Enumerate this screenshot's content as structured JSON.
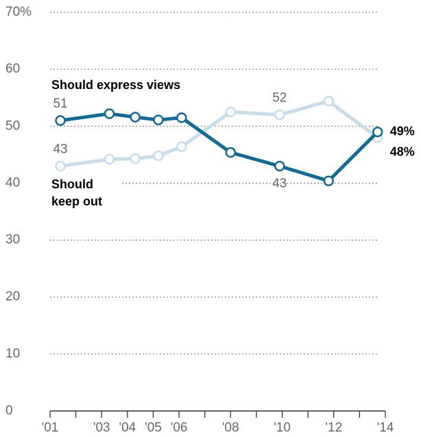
{
  "chart_data": {
    "type": "line",
    "x": [
      2001.4,
      2003.3,
      2004.3,
      2005.2,
      2006.1,
      2008.0,
      2009.9,
      2011.8,
      2013.7
    ],
    "series": [
      {
        "name": "Should express views",
        "color": "#0f6b98",
        "values": [
          51,
          52.2,
          51.6,
          51.1,
          51.5,
          45.4,
          43,
          40.4,
          49
        ],
        "value_labels": [
          "51",
          null,
          null,
          null,
          null,
          null,
          "43",
          null,
          "49%"
        ]
      },
      {
        "name": "Should keep out",
        "color": "#c6deeb",
        "values": [
          43,
          44.2,
          44.3,
          44.8,
          46.4,
          52.5,
          52,
          54.4,
          48
        ],
        "value_labels": [
          "43",
          null,
          null,
          null,
          null,
          null,
          "52",
          null,
          "48%"
        ]
      }
    ],
    "xlim": [
      2001,
      2014
    ],
    "xticks": [
      {
        "value": 2001,
        "label": "'01"
      },
      {
        "value": 2003,
        "label": "'03"
      },
      {
        "value": 2004,
        "label": "'04"
      },
      {
        "value": 2005,
        "label": "'05"
      },
      {
        "value": 2006,
        "label": "'06"
      },
      {
        "value": 2008,
        "label": "'08"
      },
      {
        "value": 2010,
        "label": "'10"
      },
      {
        "value": 2012,
        "label": "'12"
      },
      {
        "value": 2014,
        "label": "'14"
      }
    ],
    "xminorticks": [
      2002,
      2007,
      2009,
      2011,
      2013
    ],
    "ylim": [
      0,
      70
    ],
    "yticks": [
      0,
      10,
      20,
      30,
      40,
      50,
      60,
      {
        "value": 70,
        "label": "70%"
      }
    ],
    "grid": true
  }
}
